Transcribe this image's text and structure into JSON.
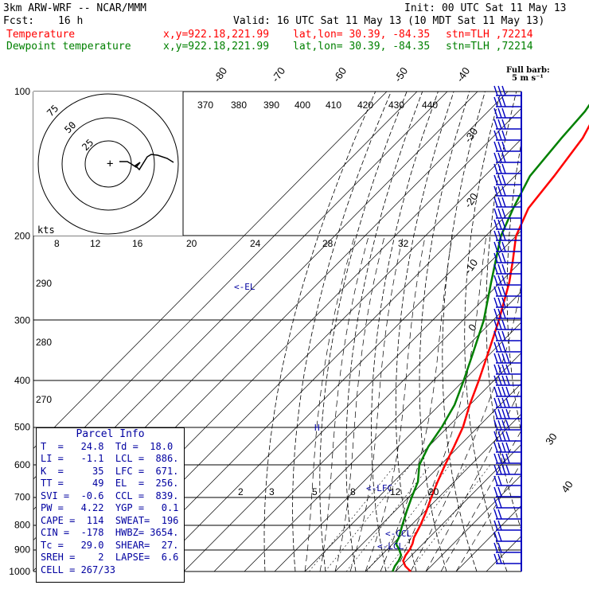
{
  "header": {
    "model": "3km ARW-WRF -- NCAR/MMM",
    "init": "Init: 00 UTC Sat 11 May 13",
    "fcst_label": "Fcst:",
    "fcst_value": "16 h",
    "valid": "Valid: 16 UTC Sat 11 May 13 (10 MDT Sat 11 May 13)",
    "temp_label": "Temperature",
    "temp_coords": "x,y=922.18,221.99",
    "temp_latlon": "lat,lon= 30.39, -84.35",
    "temp_stn": "stn=TLH ,72214",
    "dew_label": "Dewpoint temperature",
    "dew_coords": "x,y=922.18,221.99",
    "dew_latlon": "lat,lon= 30.39, -84.35",
    "dew_stn": "stn=TLH ,72214",
    "barb_title": "Full barb:",
    "barb_sub": "5 m s⁻¹"
  },
  "parcel_info": {
    "title": "Parcel Info",
    "rows": [
      "T  =   24.8  Td =  18.0",
      "LI =   -1.1  LCL =  886.",
      "K  =     35  LFC =  671.",
      "TT =     49  EL  =  256.",
      "SVI =  -0.6  CCL =  839.",
      "PW =   4.22  YGP =   0.1",
      "CAPE =  114  SWEAT=  196",
      "CIN =  -178  HWBZ= 3654.",
      "Tc =   29.0  SHEAR=  27.",
      "SREH =    2  LAPSE=  6.6",
      "CELL = 267/33"
    ]
  },
  "hodograph": {
    "units_label": "kts",
    "ring_labels": [
      "25",
      "50",
      "75"
    ],
    "speed_axis_labels": [
      "8",
      "12",
      "16",
      "20",
      "24",
      "28",
      "32"
    ]
  },
  "chart_data": {
    "type": "line",
    "chart_kind": "skew-T log-P sounding",
    "pressure_axis_labels": [
      "100",
      "200",
      "300",
      "400",
      "500",
      "600",
      "700",
      "800",
      "900",
      "1000"
    ],
    "pressure_range_hpa": [
      1000,
      100
    ],
    "temperature_labels": [
      "-80",
      "-70",
      "-60",
      "-50",
      "-40",
      "-30",
      "-20",
      "-10",
      "0",
      "30",
      "40"
    ],
    "theta_labels": [
      "370",
      "380",
      "390",
      "400",
      "410",
      "420",
      "430",
      "440",
      "290",
      "280",
      "270"
    ],
    "mixing_ratio_labels": [
      "2",
      "3",
      "5",
      "8",
      "12",
      "20"
    ],
    "level_markers": [
      "<-EL",
      "<-LFC",
      "<-CCL",
      "<-LCL"
    ],
    "series": [
      {
        "name": "Temperature",
        "color": "#ff0000",
        "points": [
          [
            1000,
            25
          ],
          [
            975,
            21.5
          ],
          [
            950,
            19
          ],
          [
            925,
            18
          ],
          [
            900,
            17.5
          ],
          [
            875,
            16.5
          ],
          [
            850,
            15
          ],
          [
            800,
            13
          ],
          [
            750,
            10.5
          ],
          [
            700,
            7.5
          ],
          [
            650,
            4.5
          ],
          [
            600,
            1.5
          ],
          [
            550,
            -1.5
          ],
          [
            500,
            -5
          ],
          [
            450,
            -10
          ],
          [
            400,
            -15
          ],
          [
            350,
            -21
          ],
          [
            300,
            -28
          ],
          [
            250,
            -37
          ],
          [
            225,
            -43
          ],
          [
            200,
            -50
          ],
          [
            175,
            -55
          ],
          [
            150,
            -57
          ],
          [
            125,
            -60
          ],
          [
            110,
            -64
          ],
          [
            100,
            -70
          ]
        ]
      },
      {
        "name": "Dewpoint temperature",
        "color": "#008000",
        "points": [
          [
            1000,
            19
          ],
          [
            975,
            18
          ],
          [
            950,
            17.5
          ],
          [
            925,
            16.5
          ],
          [
            900,
            14
          ],
          [
            875,
            11
          ],
          [
            850,
            10
          ],
          [
            800,
            7
          ],
          [
            750,
            4
          ],
          [
            700,
            1
          ],
          [
            650,
            -2
          ],
          [
            600,
            -7
          ],
          [
            550,
            -10
          ],
          [
            500,
            -12
          ],
          [
            450,
            -15
          ],
          [
            400,
            -20
          ],
          [
            350,
            -26
          ],
          [
            300,
            -33
          ],
          [
            250,
            -43
          ],
          [
            200,
            -55
          ],
          [
            175,
            -60
          ],
          [
            150,
            -65
          ],
          [
            125,
            -67
          ],
          [
            110,
            -68
          ],
          [
            100,
            -70
          ]
        ]
      }
    ],
    "wind_barbs_present": true
  }
}
